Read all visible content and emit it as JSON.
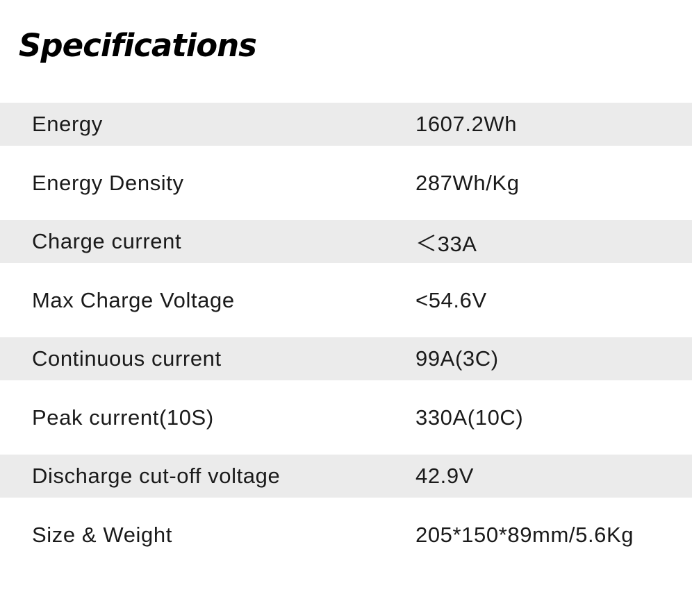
{
  "title": "Specifications",
  "specs": [
    {
      "label": "Energy",
      "value": "1607.2Wh"
    },
    {
      "label": "Energy Density",
      "value": "287Wh/Kg"
    },
    {
      "label": "Charge current",
      "value": "＜33A"
    },
    {
      "label": "Max Charge Voltage",
      "value": "<54.6V"
    },
    {
      "label": "Continuous current",
      "value": "99A(3C)"
    },
    {
      "label": "Peak current(10S)",
      "value": "330A(10C)"
    },
    {
      "label": "Discharge cut-off voltage",
      "value": "42.9V"
    },
    {
      "label": "Size & Weight",
      "value": "205*150*89mm/5.6Kg"
    }
  ],
  "colors": {
    "shaded_row": "#ebebeb",
    "text": "#1a1a1a",
    "title": "#000000"
  }
}
